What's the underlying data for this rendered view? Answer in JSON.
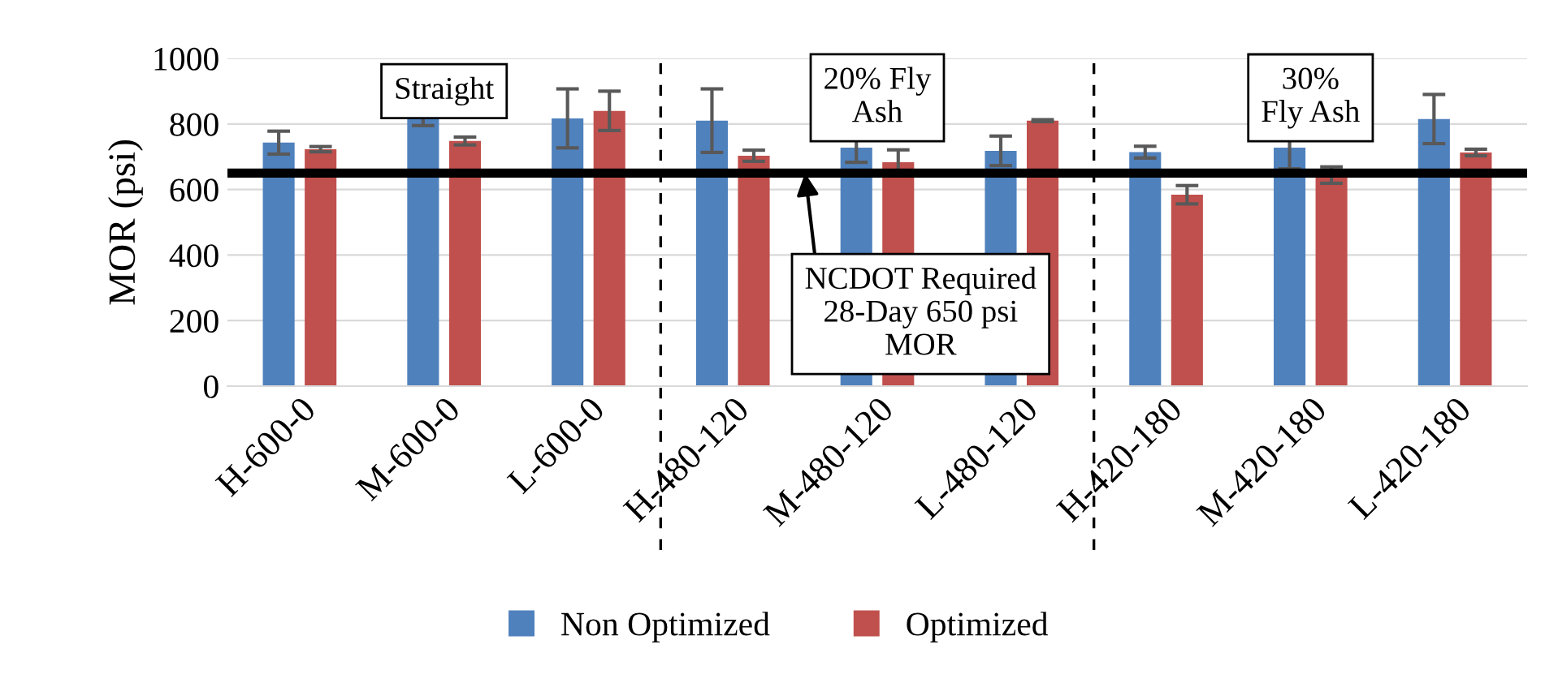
{
  "chart_data": {
    "type": "bar",
    "ylabel": "MOR (psi)",
    "categories": [
      "H-600-0",
      "M-600-0",
      "L-600-0",
      "H-480-120",
      "M-480-120",
      "L-480-120",
      "H-420-180",
      "M-420-180",
      "L-420-180"
    ],
    "series": [
      {
        "name": "Non Optimized",
        "color": "#4f81bd",
        "values": [
          743,
          820,
          817,
          810,
          728,
          718,
          714,
          728,
          815
        ],
        "errors": [
          35,
          25,
          90,
          97,
          45,
          45,
          18,
          65,
          75
        ]
      },
      {
        "name": "Optimized",
        "color": "#c0504d",
        "values": [
          723,
          748,
          840,
          703,
          683,
          810,
          584,
          644,
          713
        ],
        "errors": [
          8,
          12,
          60,
          17,
          38,
          3,
          28,
          25,
          10
        ]
      }
    ],
    "ylim": [
      0,
      1000
    ],
    "yticks": [
      0,
      200,
      400,
      600,
      800,
      1000
    ],
    "grid": "y",
    "legend": "bottom",
    "ref_lines": [
      {
        "axis": "y",
        "value": 650,
        "color": "#000000",
        "line_style": "solid"
      }
    ],
    "annotations": [
      "Straight",
      "20% Fly\nAsh",
      "30%\nFly Ash",
      {
        "text": "NCDOT Required\n28-Day 650 psi\nMOR",
        "y": 650
      }
    ]
  }
}
